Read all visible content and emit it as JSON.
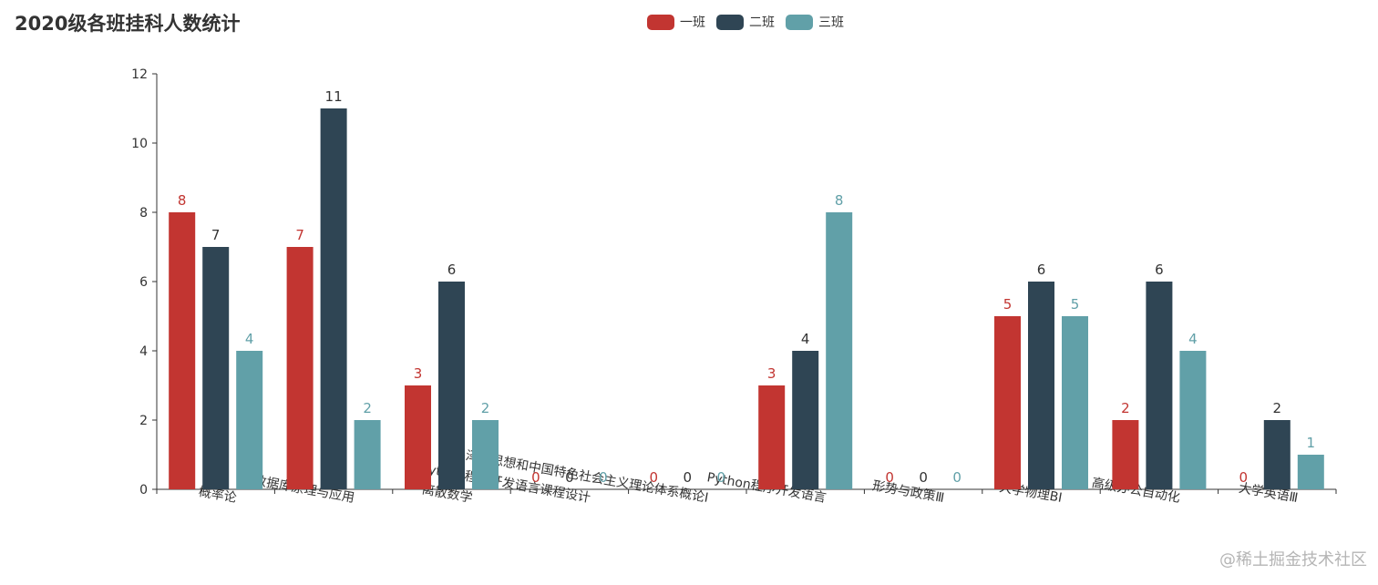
{
  "chart_data": {
    "type": "bar",
    "title": "2020级各班挂科人数统计",
    "categories": [
      "概率论",
      "数据库原理与应用",
      "离散数学",
      "Python程序开发语言课程设计",
      "毛泽东思想和中国特色社会主义理论体系概论Ⅰ",
      "Python程序开发语言",
      "形势与政策Ⅲ",
      "大学物理BⅠ",
      "高级办公自动化",
      "大学英语Ⅲ"
    ],
    "series": [
      {
        "name": "一班",
        "color": "#c23531",
        "values": [
          8,
          7,
          3,
          0,
          0,
          3,
          0,
          5,
          2,
          0
        ]
      },
      {
        "name": "二班",
        "color": "#2f4554",
        "values": [
          7,
          11,
          6,
          0,
          0,
          4,
          0,
          6,
          6,
          2
        ]
      },
      {
        "name": "三班",
        "color": "#61a0a8",
        "values": [
          4,
          2,
          2,
          0,
          0,
          8,
          0,
          5,
          4,
          1
        ]
      }
    ],
    "ylim": [
      0,
      12
    ],
    "yticks": [
      0,
      2,
      4,
      6,
      8,
      10,
      12
    ],
    "xlabel": "",
    "ylabel": "",
    "grid": false,
    "legend_position": "top-center"
  },
  "watermark": "@稀土掘金技术社区"
}
